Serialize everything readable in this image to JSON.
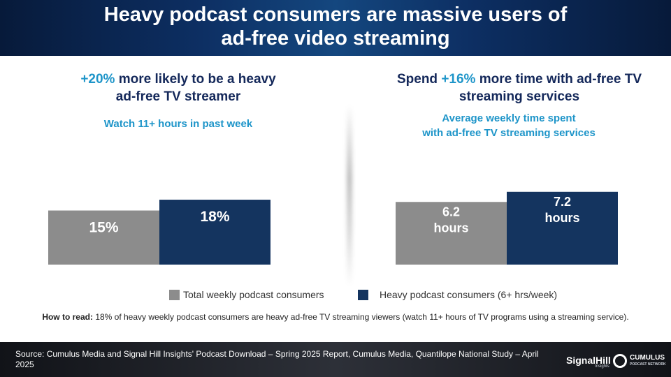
{
  "title": {
    "line1": "Heavy podcast consumers are massive users of",
    "line2": "ad-free video streaming"
  },
  "left_panel": {
    "accent": "+20%",
    "head_rest1": " more likely to be a heavy",
    "head_line2": "ad-free TV streamer",
    "subtitle": "Watch 11+ hours in past week"
  },
  "right_panel": {
    "head_pre": "Spend ",
    "accent": "+16%",
    "head_rest1": " more time with ad-free TV",
    "head_line2": "streaming services",
    "subtitle_line1": "Average weekly time spent",
    "subtitle_line2": "with ad-free TV streaming services"
  },
  "legend": {
    "total": "Total weekly podcast consumers",
    "heavy": "Heavy podcast consumers (6+ hrs/week)"
  },
  "howto": {
    "label": "How to read:",
    "text": " 18% of heavy weekly podcast consumers are heavy ad-free TV streaming viewers (watch 11+ hours of TV programs using a streaming service)."
  },
  "footer": {
    "source": "Source: Cumulus Media and Signal Hill Insights' Podcast Download – Spring 2025 Report, Cumulus Media, Quantilope National Study – April 2025",
    "logo1": "SignalHill",
    "logo1_sub": "Insights",
    "logo2": "CUMULUS",
    "logo2_sub": "PODCAST NETWORK"
  },
  "colors": {
    "total": "#8c8c8c",
    "heavy": "#14345f",
    "accent": "#1e95c9",
    "heading": "#14285a"
  },
  "chart_data": [
    {
      "type": "bar",
      "categories": [
        "Total weekly podcast consumers",
        "Heavy podcast consumers (6+ hrs/week)"
      ],
      "values": [
        15,
        18
      ],
      "labels": [
        "15%",
        "18%"
      ],
      "unit": "%",
      "ylim": [
        0,
        21.3
      ],
      "title": "",
      "xlabel": "",
      "ylabel": ""
    },
    {
      "type": "bar",
      "categories": [
        "Total weekly podcast consumers",
        "Heavy podcast consumers (6+ hrs/week)"
      ],
      "values": [
        6.2,
        7.2
      ],
      "labels": [
        [
          "6.2",
          "hours"
        ],
        [
          "7.2",
          "hours"
        ]
      ],
      "unit": "hours",
      "ylim": [
        0,
        8.29
      ],
      "title": "",
      "xlabel": "",
      "ylabel": ""
    }
  ]
}
